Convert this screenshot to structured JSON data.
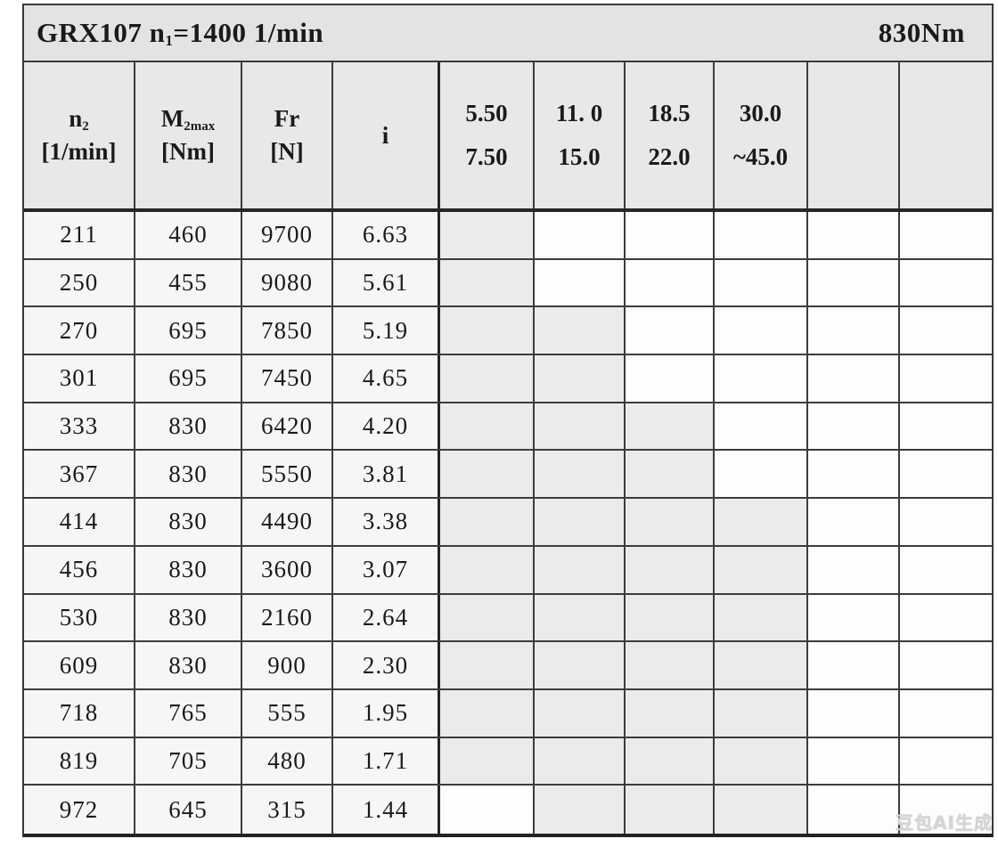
{
  "title_row": {
    "left_prefix": "GRX107 n",
    "left_sub": "1",
    "left_suffix": "=1400 1/min",
    "right": "830Nm"
  },
  "header": {
    "n2": {
      "main": "n",
      "sub": "2",
      "unit": "[1/min]"
    },
    "m2max": {
      "main": "M",
      "sub": "2max",
      "unit": "[Nm]"
    },
    "fr": {
      "main": "Fr",
      "unit": "[N]"
    },
    "i": {
      "main": "i"
    },
    "power_cols": [
      {
        "line1": "5.50",
        "line2": "7.50"
      },
      {
        "line1": "11. 0",
        "line2": "15.0"
      },
      {
        "line1": "18.5",
        "line2": "22.0"
      },
      {
        "line1": "30.0",
        "line2": "~45.0"
      },
      {
        "line1": "",
        "line2": ""
      },
      {
        "line1": "",
        "line2": ""
      }
    ]
  },
  "chart_data": {
    "type": "table",
    "title": "GRX107 n1=1400 1/min, 830Nm",
    "columns": [
      "n2 [1/min]",
      "M2max [Nm]",
      "Fr [N]",
      "i",
      "5.50/7.50",
      "11.0/15.0",
      "18.5/22.0",
      "30.0/~45.0",
      "",
      ""
    ],
    "note": "shaded array marks gray cells in the six power-rating columns"
  },
  "rows": [
    {
      "n2": "211",
      "m2max": "460",
      "fr": "9700",
      "i": "6.63",
      "shaded": [
        1,
        0,
        0,
        0,
        0,
        0
      ]
    },
    {
      "n2": "250",
      "m2max": "455",
      "fr": "9080",
      "i": "5.61",
      "shaded": [
        1,
        0,
        0,
        0,
        0,
        0
      ]
    },
    {
      "n2": "270",
      "m2max": "695",
      "fr": "7850",
      "i": "5.19",
      "shaded": [
        1,
        1,
        0,
        0,
        0,
        0
      ]
    },
    {
      "n2": "301",
      "m2max": "695",
      "fr": "7450",
      "i": "4.65",
      "shaded": [
        1,
        1,
        0,
        0,
        0,
        0
      ]
    },
    {
      "n2": "333",
      "m2max": "830",
      "fr": "6420",
      "i": "4.20",
      "shaded": [
        1,
        1,
        1,
        0,
        0,
        0
      ]
    },
    {
      "n2": "367",
      "m2max": "830",
      "fr": "5550",
      "i": "3.81",
      "shaded": [
        1,
        1,
        1,
        0,
        0,
        0
      ]
    },
    {
      "n2": "414",
      "m2max": "830",
      "fr": "4490",
      "i": "3.38",
      "shaded": [
        1,
        1,
        1,
        1,
        0,
        0
      ]
    },
    {
      "n2": "456",
      "m2max": "830",
      "fr": "3600",
      "i": "3.07",
      "shaded": [
        1,
        1,
        1,
        1,
        0,
        0
      ]
    },
    {
      "n2": "530",
      "m2max": "830",
      "fr": "2160",
      "i": "2.64",
      "shaded": [
        1,
        1,
        1,
        1,
        0,
        0
      ]
    },
    {
      "n2": "609",
      "m2max": "830",
      "fr": "900",
      "i": "2.30",
      "shaded": [
        1,
        1,
        1,
        1,
        0,
        0
      ]
    },
    {
      "n2": "718",
      "m2max": "765",
      "fr": "555",
      "i": "1.95",
      "shaded": [
        1,
        1,
        1,
        1,
        0,
        0
      ]
    },
    {
      "n2": "819",
      "m2max": "705",
      "fr": "480",
      "i": "1.71",
      "shaded": [
        1,
        1,
        1,
        1,
        0,
        0
      ]
    },
    {
      "n2": "972",
      "m2max": "645",
      "fr": "315",
      "i": "1.44",
      "shaded": [
        0,
        1,
        1,
        1,
        0,
        0
      ]
    }
  ],
  "watermark": "豆包AI生成",
  "colors": {
    "title_bg": "#e3e3e2",
    "header_bg": "#e8e8e7",
    "left_cell": "#f6f6f5",
    "unshaded_cell": "#fdfdfd",
    "shaded_cell": "#ebebeb",
    "grid_line": "#3c3c3c",
    "text": "#1a1a1a"
  }
}
